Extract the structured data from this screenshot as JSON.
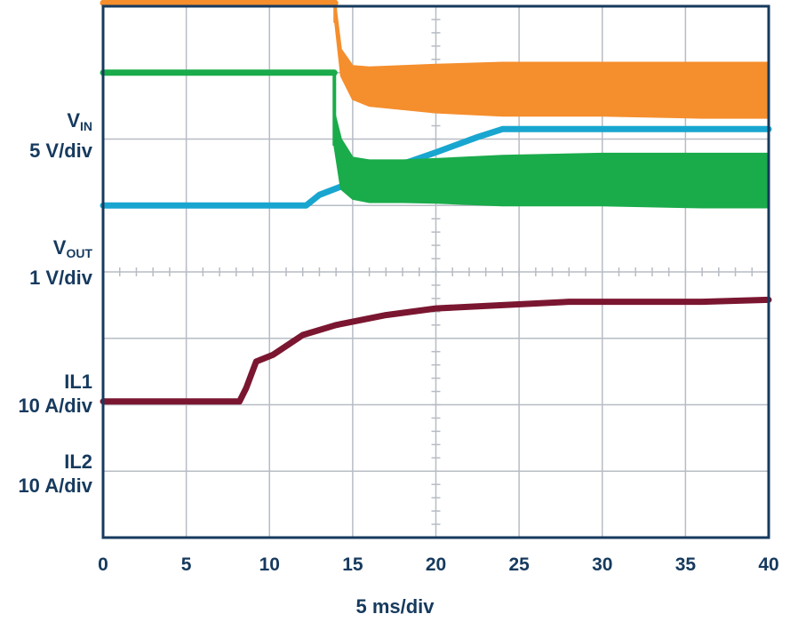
{
  "colors": {
    "frame": "#163a5e",
    "grid": "#b7bcc4",
    "vin": "#7b1630",
    "vout": "#18a6d0",
    "il1": "#1aab4b",
    "il2": "#f58e2c"
  },
  "channels": {
    "vin": {
      "name": "V",
      "sub": "IN",
      "scale": "5 V/div"
    },
    "vout": {
      "name": "V",
      "sub": "OUT",
      "scale": "1 V/div"
    },
    "il1": {
      "name": "IL1",
      "scale": "10 A/div"
    },
    "il2": {
      "name": "IL2",
      "scale": "10 A/div"
    }
  },
  "chart_data": {
    "type": "line",
    "title": "",
    "xlabel": "5 ms/div",
    "ylabel": "",
    "xlim": [
      0,
      40
    ],
    "x_ticks": [
      "0",
      "5",
      "10",
      "15",
      "20",
      "25",
      "30",
      "35",
      "40"
    ],
    "y_divisions": 8,
    "grid": true,
    "y_unit": "divisions (from top of screen)",
    "series": [
      {
        "name": "VIN",
        "color": "#7b1630",
        "x": [
          0,
          8.2,
          8.6,
          9.2,
          10.2,
          12,
          14,
          17,
          20,
          24,
          28,
          32,
          36,
          40
        ],
        "y": [
          5.95,
          5.95,
          5.75,
          5.35,
          5.25,
          4.95,
          4.8,
          4.65,
          4.55,
          4.5,
          4.45,
          4.45,
          4.45,
          4.42
        ]
      },
      {
        "name": "VOUT",
        "color": "#18a6d0",
        "x": [
          0,
          12.2,
          13,
          16,
          20,
          22.5,
          24,
          30,
          36,
          40
        ],
        "y": [
          3.0,
          3.0,
          2.84,
          2.55,
          2.2,
          1.97,
          1.85,
          1.85,
          1.85,
          1.85
        ]
      },
      {
        "name": "IL1",
        "color": "#1aab4b",
        "x": [
          0,
          13.9
        ],
        "y": [
          1.0,
          1.0
        ],
        "envelope": {
          "x": [
            13.9,
            14.3,
            15,
            16,
            18,
            20,
            24,
            30,
            36,
            40
          ],
          "upper": [
            2.1,
            2.75,
            2.9,
            2.95,
            2.95,
            2.96,
            3.0,
            3.0,
            3.03,
            3.03
          ],
          "lower": [
            1.6,
            2.0,
            2.28,
            2.32,
            2.32,
            2.3,
            2.25,
            2.22,
            2.22,
            2.22
          ]
        }
      },
      {
        "name": "IL2",
        "color": "#f58e2c",
        "x": [
          0,
          13.95
        ],
        "y": [
          -0.05,
          -0.05
        ],
        "envelope": {
          "x": [
            13.95,
            14.3,
            15,
            16,
            18,
            20,
            24,
            30,
            36,
            40
          ],
          "upper": [
            0.25,
            1.05,
            1.4,
            1.5,
            1.55,
            1.6,
            1.65,
            1.65,
            1.68,
            1.68
          ],
          "lower": [
            -0.05,
            0.65,
            0.9,
            0.92,
            0.9,
            0.88,
            0.85,
            0.85,
            0.85,
            0.85
          ]
        }
      }
    ]
  }
}
